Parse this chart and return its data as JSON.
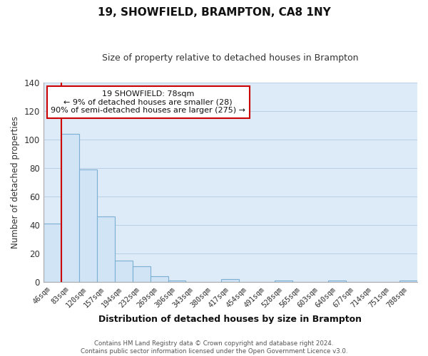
{
  "title": "19, SHOWFIELD, BRAMPTON, CA8 1NY",
  "subtitle": "Size of property relative to detached houses in Brampton",
  "xlabel": "Distribution of detached houses by size in Brampton",
  "ylabel": "Number of detached properties",
  "bar_labels": [
    "46sqm",
    "83sqm",
    "120sqm",
    "157sqm",
    "194sqm",
    "232sqm",
    "269sqm",
    "306sqm",
    "343sqm",
    "380sqm",
    "417sqm",
    "454sqm",
    "491sqm",
    "528sqm",
    "565sqm",
    "603sqm",
    "640sqm",
    "677sqm",
    "714sqm",
    "751sqm",
    "788sqm"
  ],
  "bar_heights": [
    41,
    104,
    79,
    46,
    15,
    11,
    4,
    1,
    0,
    0,
    2,
    0,
    0,
    1,
    0,
    0,
    1,
    0,
    0,
    0,
    1
  ],
  "bar_face_color": "#d0e4f5",
  "bar_edge_color": "#7bafd4",
  "marker_line_color": "#cc0000",
  "ylim": [
    0,
    140
  ],
  "yticks": [
    0,
    20,
    40,
    60,
    80,
    100,
    120,
    140
  ],
  "annotation_title": "19 SHOWFIELD: 78sqm",
  "annotation_line1": "← 9% of detached houses are smaller (28)",
  "annotation_line2": "90% of semi-detached houses are larger (275) →",
  "annotation_box_face": "#ffffff",
  "annotation_box_edge": "#cc0000",
  "footer_line1": "Contains HM Land Registry data © Crown copyright and database right 2024.",
  "footer_line2": "Contains public sector information licensed under the Open Government Licence v3.0.",
  "plot_bg_color": "#ddeaf7",
  "fig_bg_color": "#ffffff",
  "grid_color": "#b8cfe8"
}
